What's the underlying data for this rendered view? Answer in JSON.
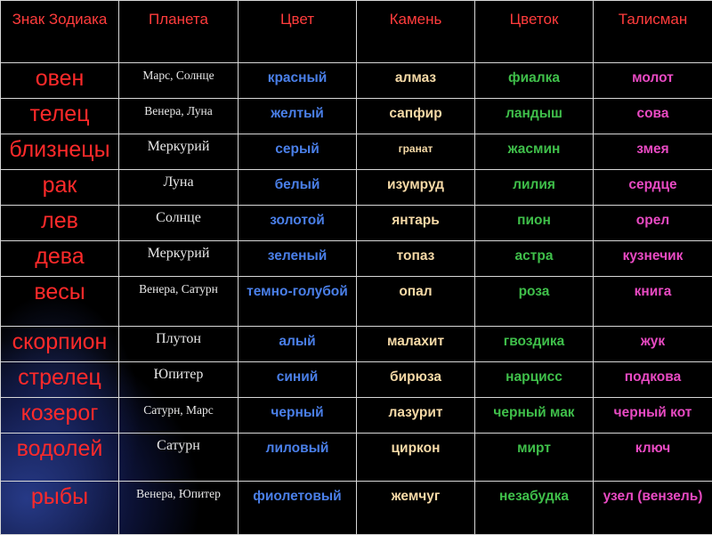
{
  "headers": {
    "sign": "Знак Зодиака",
    "planet": "Планета",
    "color": "Цвет",
    "stone": "Камень",
    "flower": "Цветок",
    "talisman": "Талисман"
  },
  "rows": [
    {
      "sign": "овен",
      "planet": "Марс, Солнце",
      "color": "красный",
      "stone": "алмаз",
      "flower": "фиалка",
      "talisman": "молот"
    },
    {
      "sign": "телец",
      "planet": "Венера, Луна",
      "color": "желтый",
      "stone": "сапфир",
      "flower": "ландыш",
      "talisman": "сова"
    },
    {
      "sign": "близнецы",
      "planet": "Меркурий",
      "color": "серый",
      "stone": "гранат",
      "flower": "жасмин",
      "talisman": "змея"
    },
    {
      "sign": "рак",
      "planet": "Луна",
      "color": "белый",
      "stone": "изумруд",
      "flower": "лилия",
      "talisman": "сердце"
    },
    {
      "sign": "лев",
      "planet": "Солнце",
      "color": "золотой",
      "stone": "янтарь",
      "flower": "пион",
      "talisman": "орел"
    },
    {
      "sign": "дева",
      "planet": "Меркурий",
      "color": "зеленый",
      "stone": "топаз",
      "flower": "астра",
      "talisman": "кузнечик"
    },
    {
      "sign": "весы",
      "planet": "Венера, Сатурн",
      "color": "темно-голубой",
      "stone": "опал",
      "flower": "роза",
      "talisman": "книга"
    },
    {
      "sign": "скорпион",
      "planet": "Плутон",
      "color": "алый",
      "stone": "малахит",
      "flower": "гвоздика",
      "talisman": "жук"
    },
    {
      "sign": "стрелец",
      "planet": "Юпитер",
      "color": "синий",
      "stone": "бирюза",
      "flower": "нарцисс",
      "talisman": "подкова"
    },
    {
      "sign": "козерог",
      "planet": "Сатурн, Марс",
      "color": "черный",
      "stone": "лазурит",
      "flower": "черный мак",
      "talisman": "черный кот"
    },
    {
      "sign": "водолей",
      "planet": "Сатурн",
      "color": "лиловый",
      "stone": "циркон",
      "flower": "мирт",
      "talisman": "ключ"
    },
    {
      "sign": "рыбы",
      "planet": "Венера, Юпитер",
      "color": "фиолетовый",
      "stone": "жемчуг",
      "flower": "незабудка",
      "talisman": "узел (вензель)"
    }
  ],
  "colors": {
    "background": "#000000",
    "header_text": "#ff3c3c",
    "sign_text": "#ff2a2a",
    "planet_text": "#e8e8e8",
    "color_col": "#4a7fe8",
    "stone_col": "#f5d9a6",
    "flower_col": "#3fbf4a",
    "talisman_col": "#e84ac2"
  }
}
